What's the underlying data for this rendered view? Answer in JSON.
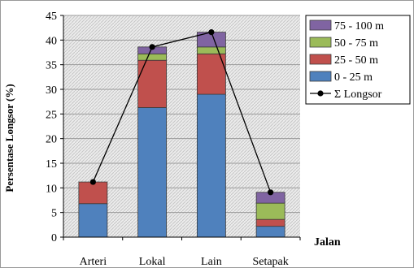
{
  "chart_data": {
    "type": "bar",
    "stacked": true,
    "categories": [
      "Arteri",
      "Lokal",
      "Lain",
      "Setapak"
    ],
    "series": [
      {
        "name": "0 - 25 m",
        "color": "#4f81bd",
        "values": [
          6.8,
          26.3,
          29,
          2.2
        ]
      },
      {
        "name": "25 - 50 m",
        "color": "#c0504d",
        "values": [
          4.4,
          9.6,
          8.2,
          1.4
        ]
      },
      {
        "name": "50 - 75 m",
        "color": "#9bbb59",
        "values": [
          0,
          1.3,
          1.4,
          3.3
        ]
      },
      {
        "name": "75 - 100 m",
        "color": "#8064a2",
        "values": [
          0,
          1.4,
          3,
          2.2
        ]
      }
    ],
    "line_series": {
      "name": "Σ Longsor",
      "color": "#000000",
      "values": [
        11.2,
        38.6,
        41.6,
        9.1
      ]
    },
    "xlabel": "Jalan",
    "ylabel": "Persentase Longsor (%)",
    "ylim": [
      0,
      45
    ],
    "yticks": [
      "0",
      "5",
      "10",
      "15",
      "20",
      "25",
      "30",
      "35",
      "40",
      "45"
    ],
    "grid": true,
    "legend_position": "top-right"
  }
}
